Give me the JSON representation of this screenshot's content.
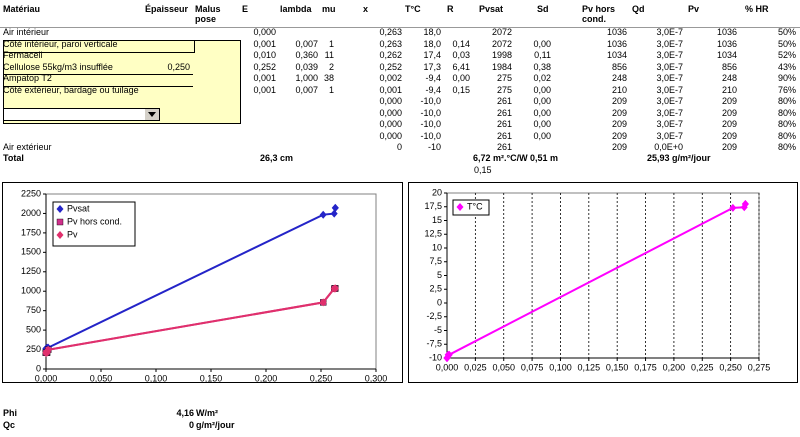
{
  "sheet": {
    "columns": {
      "material": "Matériau",
      "thickness": "Épaisseur",
      "malus": "Malus pose",
      "E": "E",
      "lambda": "lambda",
      "mu": "mu",
      "x": "x",
      "T": "T°C",
      "R": "R",
      "Pvsat": "Pvsat",
      "Sd": "Sd",
      "Pv_hc": "Pv hors cond.",
      "Qd": "Qd",
      "Pv": "Pv",
      "HR": "% HR"
    },
    "rows": [
      {
        "material": "Air intérieur",
        "E": "0,000",
        "x": "0,263",
        "T": "18,0",
        "Pvsat": "2072",
        "Pv_hc": "1036",
        "Qd": "3,0E-7",
        "Pv": "1036",
        "HR": "50%"
      },
      {
        "material": "Côté intérieur, paroi verticale",
        "E": "0,001",
        "lambda": "0,007",
        "mu": "1",
        "x": "0,263",
        "T": "18,0",
        "R": "0,14",
        "Pvsat": "2072",
        "Sd": "0,00",
        "Pv_hc": "1036",
        "Qd": "3,0E-7",
        "Pv": "1036",
        "HR": "50%"
      },
      {
        "material": "Fermacell",
        "E": "0,010",
        "lambda": "0,360",
        "mu": "11",
        "x": "0,262",
        "T": "17,4",
        "R": "0,03",
        "Pvsat": "1998",
        "Sd": "0,11",
        "Pv_hc": "1034",
        "Qd": "3,0E-7",
        "Pv": "1034",
        "HR": "52%"
      },
      {
        "material": "Cellulose 55kg/m3 insufflée",
        "thickness": "0,250",
        "E": "0,252",
        "lambda": "0,039",
        "mu": "2",
        "x": "0,252",
        "T": "17,3",
        "R": "6,41",
        "Pvsat": "1984",
        "Sd": "0,38",
        "Pv_hc": "856",
        "Qd": "3,0E-7",
        "Pv": "856",
        "HR": "43%"
      },
      {
        "material": "Ampatop T2",
        "E": "0,001",
        "lambda": "1,000",
        "mu": "38",
        "x": "0,002",
        "T": "-9,4",
        "R": "0,00",
        "Pvsat": "275",
        "Sd": "0,02",
        "Pv_hc": "248",
        "Qd": "3,0E-7",
        "Pv": "248",
        "HR": "90%"
      },
      {
        "material": "Côté extérieur, bardage ou tuilage",
        "E": "0,001",
        "lambda": "0,007",
        "mu": "1",
        "x": "0,001",
        "T": "-9,4",
        "R": "0,15",
        "Pvsat": "275",
        "Sd": "0,00",
        "Pv_hc": "210",
        "Qd": "3,0E-7",
        "Pv": "210",
        "HR": "76%"
      },
      {
        "x": "0,000",
        "T": "-10,0",
        "Pvsat": "261",
        "Sd": "0,00",
        "Pv_hc": "209",
        "Qd": "3,0E-7",
        "Pv": "209",
        "HR": "80%"
      },
      {
        "x": "0,000",
        "T": "-10,0",
        "Pvsat": "261",
        "Sd": "0,00",
        "Pv_hc": "209",
        "Qd": "3,0E-7",
        "Pv": "209",
        "HR": "80%"
      },
      {
        "x": "0,000",
        "T": "-10,0",
        "Pvsat": "261",
        "Sd": "0,00",
        "Pv_hc": "209",
        "Qd": "3,0E-7",
        "Pv": "209",
        "HR": "80%"
      },
      {
        "x": "0,000",
        "T": "-10,0",
        "Pvsat": "261",
        "Sd": "0,00",
        "Pv_hc": "209",
        "Qd": "3,0E-7",
        "Pv": "209",
        "HR": "80%"
      },
      {
        "material": "Air extérieur",
        "x": "0",
        "T": "-10",
        "Pvsat": "261",
        "Pv_hc": "209",
        "Qd": "0,0E+0",
        "Pv": "209",
        "HR": "80%"
      }
    ],
    "total": {
      "material": "Total",
      "E": "26,3 cm",
      "R": "6,72 m².°C/W",
      "Sd": "0,51 m",
      "Qd": "25,93 g/m²/jour"
    },
    "below_total": "0,15",
    "phi": {
      "label": "Phi",
      "value": "4,16",
      "unit": "W/m²"
    },
    "qc": {
      "label": "Qc",
      "value": "0",
      "unit": "g/m²/jour"
    }
  },
  "chart_data": [
    {
      "type": "line",
      "x": [
        0.263,
        0.263,
        0.262,
        0.252,
        0.002,
        0.001,
        0.0,
        0.0,
        0.0,
        0.0,
        0
      ],
      "series": [
        {
          "name": "Pvsat",
          "color": "#2424c8",
          "marker": "diamond",
          "values": [
            2072,
            2072,
            1998,
            1984,
            275,
            275,
            261,
            261,
            261,
            261,
            261
          ]
        },
        {
          "name": "Pv hors cond.",
          "color": "#d0308c",
          "marker": "square",
          "values": [
            1036,
            1036,
            1034,
            856,
            248,
            210,
            209,
            209,
            209,
            209,
            209
          ]
        },
        {
          "name": "Pv",
          "color": "#e0306c",
          "marker": "diamond",
          "values": [
            1036,
            1036,
            1034,
            856,
            248,
            210,
            209,
            209,
            209,
            209,
            209
          ]
        }
      ],
      "xlim": [
        0,
        0.3
      ],
      "xticks": [
        {
          "value": 0,
          "label": "0,000"
        },
        {
          "value": 0.05,
          "label": "0,050"
        },
        {
          "value": 0.1,
          "label": "0,100"
        },
        {
          "value": 0.15,
          "label": "0,150"
        },
        {
          "value": 0.2,
          "label": "0,200"
        },
        {
          "value": 0.25,
          "label": "0,250"
        },
        {
          "value": 0.3,
          "label": "0,300"
        }
      ],
      "ylim": [
        0,
        2250
      ],
      "yticks": [
        0,
        250,
        500,
        750,
        1000,
        1250,
        1500,
        1750,
        2000,
        2250
      ],
      "x_grid": false
    },
    {
      "type": "line",
      "x": [
        0.263,
        0.263,
        0.262,
        0.252,
        0.002,
        0.001,
        0.0,
        0.0,
        0.0,
        0.0,
        0
      ],
      "series": [
        {
          "name": "T°C",
          "color": "#ff00ff",
          "marker": "diamond",
          "values": [
            18.0,
            18.0,
            17.4,
            17.3,
            -9.4,
            -9.4,
            -10.0,
            -10.0,
            -10.0,
            -10.0,
            -10
          ]
        }
      ],
      "xlim": [
        0,
        0.275
      ],
      "xticks": [
        {
          "value": 0,
          "label": "0,000"
        },
        {
          "value": 0.025,
          "label": "0,025"
        },
        {
          "value": 0.05,
          "label": "0,050"
        },
        {
          "value": 0.075,
          "label": "0,075"
        },
        {
          "value": 0.1,
          "label": "0,100"
        },
        {
          "value": 0.125,
          "label": "0,125"
        },
        {
          "value": 0.15,
          "label": "0,150"
        },
        {
          "value": 0.175,
          "label": "0,175"
        },
        {
          "value": 0.2,
          "label": "0,200"
        },
        {
          "value": 0.225,
          "label": "0,225"
        },
        {
          "value": 0.25,
          "label": "0,250"
        },
        {
          "value": 0.275,
          "label": "0,275"
        }
      ],
      "ylim": [
        -10,
        20
      ],
      "yticks": [
        -10,
        {
          "value": -7.5,
          "label": "-7,5"
        },
        -5,
        {
          "value": -2.5,
          "label": "-2,5"
        },
        0,
        {
          "value": 2.5,
          "label": "2,5"
        },
        5,
        {
          "value": 7.5,
          "label": "7,5"
        },
        10,
        {
          "value": 12.5,
          "label": "12,5"
        },
        15,
        {
          "value": 17.5,
          "label": "17,5"
        },
        20
      ],
      "x_grid": true
    }
  ]
}
